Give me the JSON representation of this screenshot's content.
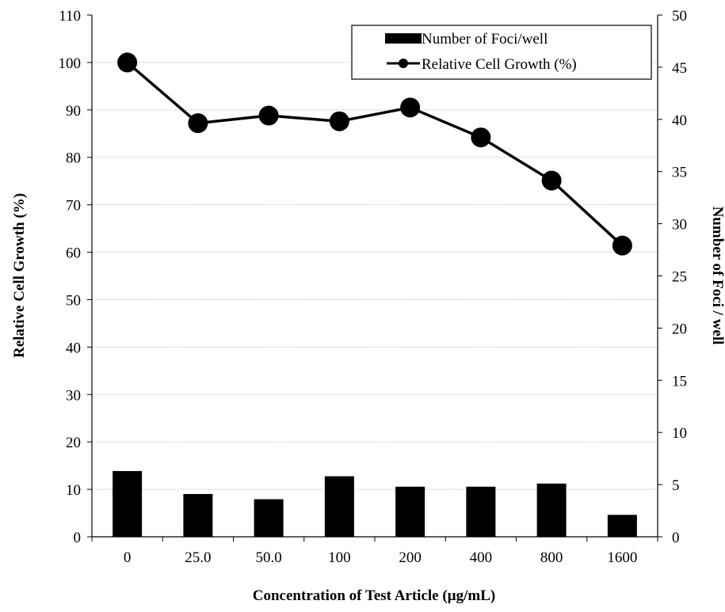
{
  "chart_data": {
    "type": "bar+line",
    "categories": [
      "0",
      "25.0",
      "50.0",
      "100",
      "200",
      "400",
      "800",
      "1600"
    ],
    "series": [
      {
        "name": "Number of Foci/well",
        "type": "bar",
        "axis": "right",
        "color": "#000000",
        "values": [
          6.3,
          4.1,
          3.6,
          5.8,
          4.8,
          4.8,
          5.1,
          2.1
        ]
      },
      {
        "name": "Relative Cell Growth (%)",
        "type": "line",
        "axis": "left",
        "color": "#000000",
        "marker": "circle",
        "values": [
          100,
          87.2,
          88.8,
          87.6,
          90.5,
          84.2,
          75.1,
          61.4
        ]
      }
    ],
    "xlabel": "Concentration of Test Article (µg/mL)",
    "ylabel_left": "Relative Cell Growth (%)",
    "ylabel_right": "Number of Foci / well",
    "ylim_left": [
      0,
      110
    ],
    "yticks_left": [
      "0",
      "10",
      "20",
      "30",
      "40",
      "50",
      "60",
      "70",
      "80",
      "90",
      "100",
      "110"
    ],
    "ylim_right": [
      0,
      50
    ],
    "yticks_right": [
      "0",
      "5",
      "10",
      "15",
      "20",
      "25",
      "30",
      "35",
      "40",
      "45",
      "50"
    ],
    "grid": true,
    "legend_position": "top-right"
  }
}
